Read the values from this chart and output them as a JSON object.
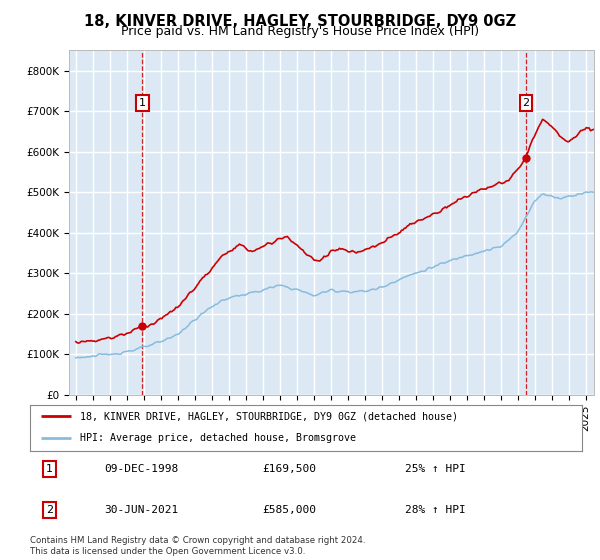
{
  "title": "18, KINVER DRIVE, HAGLEY, STOURBRIDGE, DY9 0GZ",
  "subtitle": "Price paid vs. HM Land Registry's House Price Index (HPI)",
  "ylim": [
    0,
    850000
  ],
  "yticks": [
    0,
    100000,
    200000,
    300000,
    400000,
    500000,
    600000,
    700000,
    800000
  ],
  "ytick_labels": [
    "£0",
    "£100K",
    "£200K",
    "£300K",
    "£400K",
    "£500K",
    "£600K",
    "£700K",
    "£800K"
  ],
  "plot_bg_color": "#dce9f5",
  "grid_color": "#ffffff",
  "sale1_date": 1998.92,
  "sale1_price": 169500,
  "sale2_date": 2021.5,
  "sale2_price": 585000,
  "legend_line1": "18, KINVER DRIVE, HAGLEY, STOURBRIDGE, DY9 0GZ (detached house)",
  "legend_line2": "HPI: Average price, detached house, Bromsgrove",
  "table_row1": [
    "1",
    "09-DEC-1998",
    "£169,500",
    "25% ↑ HPI"
  ],
  "table_row2": [
    "2",
    "30-JUN-2021",
    "£585,000",
    "28% ↑ HPI"
  ],
  "footer": "Contains HM Land Registry data © Crown copyright and database right 2024.\nThis data is licensed under the Open Government Licence v3.0.",
  "red_color": "#cc0000",
  "blue_color": "#88bbdd",
  "fig_bg": "#ffffff",
  "title_fontsize": 10.5,
  "subtitle_fontsize": 9,
  "tick_fontsize": 7.5,
  "hpi_keypoints": [
    [
      1995.0,
      92000
    ],
    [
      1996.0,
      95000
    ],
    [
      1997.0,
      100000
    ],
    [
      1998.0,
      107000
    ],
    [
      1999.0,
      117000
    ],
    [
      2000.0,
      130000
    ],
    [
      2001.0,
      150000
    ],
    [
      2002.0,
      185000
    ],
    [
      2003.0,
      218000
    ],
    [
      2004.0,
      240000
    ],
    [
      2005.0,
      248000
    ],
    [
      2006.0,
      258000
    ],
    [
      2007.0,
      270000
    ],
    [
      2008.0,
      260000
    ],
    [
      2009.0,
      245000
    ],
    [
      2010.0,
      258000
    ],
    [
      2011.0,
      255000
    ],
    [
      2012.0,
      255000
    ],
    [
      2013.0,
      265000
    ],
    [
      2014.0,
      285000
    ],
    [
      2015.0,
      300000
    ],
    [
      2016.0,
      315000
    ],
    [
      2017.0,
      330000
    ],
    [
      2018.0,
      345000
    ],
    [
      2019.0,
      355000
    ],
    [
      2020.0,
      365000
    ],
    [
      2021.0,
      400000
    ],
    [
      2021.5,
      440000
    ],
    [
      2022.0,
      480000
    ],
    [
      2022.5,
      495000
    ],
    [
      2023.0,
      490000
    ],
    [
      2023.5,
      485000
    ],
    [
      2024.0,
      490000
    ],
    [
      2024.5,
      495000
    ],
    [
      2025.0,
      500000
    ]
  ],
  "red_keypoints": [
    [
      1995.0,
      130000
    ],
    [
      1996.0,
      134000
    ],
    [
      1997.0,
      140000
    ],
    [
      1998.0,
      152000
    ],
    [
      1998.92,
      169500
    ],
    [
      1999.5,
      175000
    ],
    [
      2000.0,
      188000
    ],
    [
      2001.0,
      215000
    ],
    [
      2002.0,
      265000
    ],
    [
      2003.0,
      310000
    ],
    [
      2003.5,
      335000
    ],
    [
      2004.0,
      355000
    ],
    [
      2004.5,
      370000
    ],
    [
      2005.0,
      360000
    ],
    [
      2005.5,
      355000
    ],
    [
      2006.0,
      365000
    ],
    [
      2006.5,
      375000
    ],
    [
      2007.0,
      385000
    ],
    [
      2007.5,
      390000
    ],
    [
      2008.0,
      370000
    ],
    [
      2008.5,
      350000
    ],
    [
      2009.0,
      330000
    ],
    [
      2009.5,
      335000
    ],
    [
      2010.0,
      355000
    ],
    [
      2010.5,
      360000
    ],
    [
      2011.0,
      355000
    ],
    [
      2011.5,
      350000
    ],
    [
      2012.0,
      355000
    ],
    [
      2012.5,
      365000
    ],
    [
      2013.0,
      375000
    ],
    [
      2013.5,
      385000
    ],
    [
      2014.0,
      400000
    ],
    [
      2014.5,
      415000
    ],
    [
      2015.0,
      425000
    ],
    [
      2015.5,
      435000
    ],
    [
      2016.0,
      445000
    ],
    [
      2016.5,
      455000
    ],
    [
      2017.0,
      470000
    ],
    [
      2017.5,
      480000
    ],
    [
      2018.0,
      490000
    ],
    [
      2018.5,
      500000
    ],
    [
      2019.0,
      510000
    ],
    [
      2019.5,
      515000
    ],
    [
      2020.0,
      520000
    ],
    [
      2020.5,
      530000
    ],
    [
      2021.0,
      555000
    ],
    [
      2021.5,
      585000
    ],
    [
      2021.75,
      620000
    ],
    [
      2022.0,
      640000
    ],
    [
      2022.25,
      660000
    ],
    [
      2022.5,
      680000
    ],
    [
      2022.75,
      670000
    ],
    [
      2023.0,
      660000
    ],
    [
      2023.25,
      650000
    ],
    [
      2023.5,
      640000
    ],
    [
      2023.75,
      630000
    ],
    [
      2024.0,
      625000
    ],
    [
      2024.25,
      630000
    ],
    [
      2024.5,
      640000
    ],
    [
      2024.75,
      650000
    ],
    [
      2025.0,
      655000
    ]
  ]
}
